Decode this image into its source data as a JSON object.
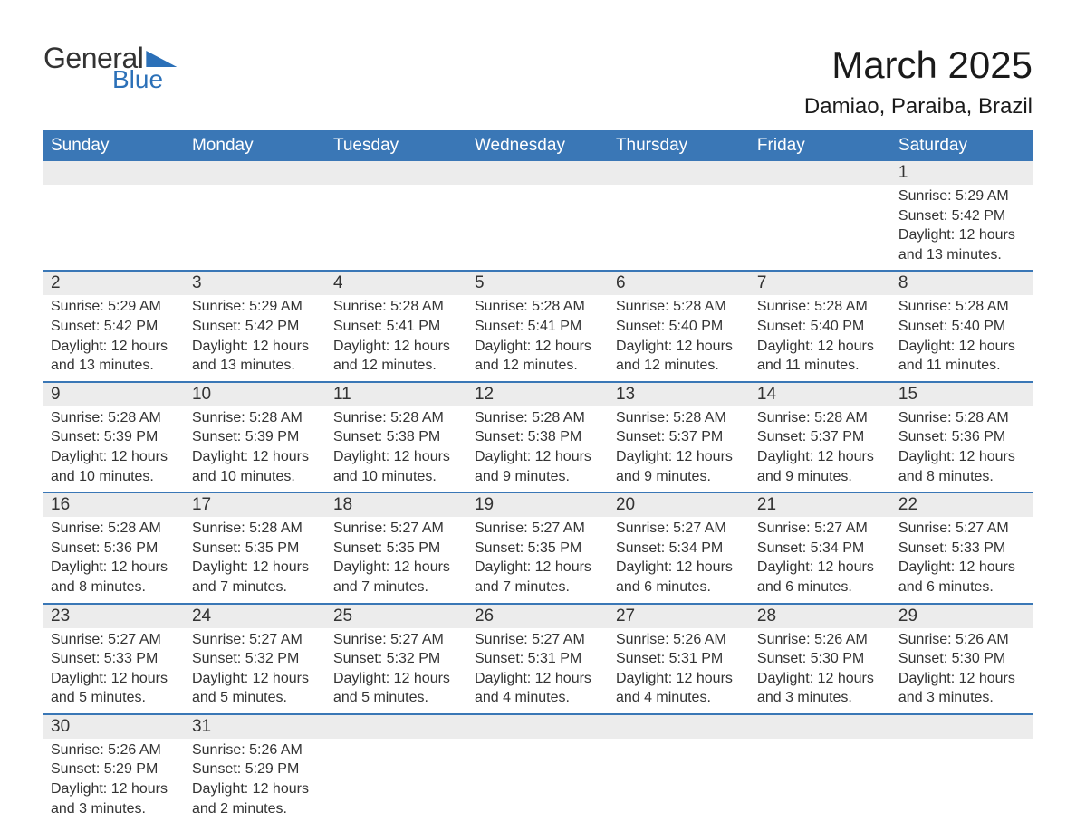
{
  "logo": {
    "line1": "General",
    "line2": "Blue"
  },
  "header": {
    "title": "March 2025",
    "location": "Damiao, Paraiba, Brazil",
    "title_fontsize": 42,
    "subtitle_fontsize": 24,
    "text_color": "#1a1a1a"
  },
  "styling": {
    "header_bg": "#3a77b6",
    "header_text_color": "#ffffff",
    "daynum_bg": "#ececec",
    "row_separator_color": "#3a77b6",
    "body_text_color": "#333333",
    "body_fontsize": 16,
    "daynum_fontsize": 19,
    "dayname_fontsize": 19,
    "page_bg": "#ffffff",
    "logo_accent": "#2b70b8"
  },
  "calendar": {
    "type": "table",
    "columns": [
      "Sunday",
      "Monday",
      "Tuesday",
      "Wednesday",
      "Thursday",
      "Friday",
      "Saturday"
    ],
    "weeks": [
      [
        {
          "day": "",
          "sunrise": "",
          "sunset": "",
          "daylight": ""
        },
        {
          "day": "",
          "sunrise": "",
          "sunset": "",
          "daylight": ""
        },
        {
          "day": "",
          "sunrise": "",
          "sunset": "",
          "daylight": ""
        },
        {
          "day": "",
          "sunrise": "",
          "sunset": "",
          "daylight": ""
        },
        {
          "day": "",
          "sunrise": "",
          "sunset": "",
          "daylight": ""
        },
        {
          "day": "",
          "sunrise": "",
          "sunset": "",
          "daylight": ""
        },
        {
          "day": "1",
          "sunrise": "Sunrise: 5:29 AM",
          "sunset": "Sunset: 5:42 PM",
          "daylight": "Daylight: 12 hours and 13 minutes."
        }
      ],
      [
        {
          "day": "2",
          "sunrise": "Sunrise: 5:29 AM",
          "sunset": "Sunset: 5:42 PM",
          "daylight": "Daylight: 12 hours and 13 minutes."
        },
        {
          "day": "3",
          "sunrise": "Sunrise: 5:29 AM",
          "sunset": "Sunset: 5:42 PM",
          "daylight": "Daylight: 12 hours and 13 minutes."
        },
        {
          "day": "4",
          "sunrise": "Sunrise: 5:28 AM",
          "sunset": "Sunset: 5:41 PM",
          "daylight": "Daylight: 12 hours and 12 minutes."
        },
        {
          "day": "5",
          "sunrise": "Sunrise: 5:28 AM",
          "sunset": "Sunset: 5:41 PM",
          "daylight": "Daylight: 12 hours and 12 minutes."
        },
        {
          "day": "6",
          "sunrise": "Sunrise: 5:28 AM",
          "sunset": "Sunset: 5:40 PM",
          "daylight": "Daylight: 12 hours and 12 minutes."
        },
        {
          "day": "7",
          "sunrise": "Sunrise: 5:28 AM",
          "sunset": "Sunset: 5:40 PM",
          "daylight": "Daylight: 12 hours and 11 minutes."
        },
        {
          "day": "8",
          "sunrise": "Sunrise: 5:28 AM",
          "sunset": "Sunset: 5:40 PM",
          "daylight": "Daylight: 12 hours and 11 minutes."
        }
      ],
      [
        {
          "day": "9",
          "sunrise": "Sunrise: 5:28 AM",
          "sunset": "Sunset: 5:39 PM",
          "daylight": "Daylight: 12 hours and 10 minutes."
        },
        {
          "day": "10",
          "sunrise": "Sunrise: 5:28 AM",
          "sunset": "Sunset: 5:39 PM",
          "daylight": "Daylight: 12 hours and 10 minutes."
        },
        {
          "day": "11",
          "sunrise": "Sunrise: 5:28 AM",
          "sunset": "Sunset: 5:38 PM",
          "daylight": "Daylight: 12 hours and 10 minutes."
        },
        {
          "day": "12",
          "sunrise": "Sunrise: 5:28 AM",
          "sunset": "Sunset: 5:38 PM",
          "daylight": "Daylight: 12 hours and 9 minutes."
        },
        {
          "day": "13",
          "sunrise": "Sunrise: 5:28 AM",
          "sunset": "Sunset: 5:37 PM",
          "daylight": "Daylight: 12 hours and 9 minutes."
        },
        {
          "day": "14",
          "sunrise": "Sunrise: 5:28 AM",
          "sunset": "Sunset: 5:37 PM",
          "daylight": "Daylight: 12 hours and 9 minutes."
        },
        {
          "day": "15",
          "sunrise": "Sunrise: 5:28 AM",
          "sunset": "Sunset: 5:36 PM",
          "daylight": "Daylight: 12 hours and 8 minutes."
        }
      ],
      [
        {
          "day": "16",
          "sunrise": "Sunrise: 5:28 AM",
          "sunset": "Sunset: 5:36 PM",
          "daylight": "Daylight: 12 hours and 8 minutes."
        },
        {
          "day": "17",
          "sunrise": "Sunrise: 5:28 AM",
          "sunset": "Sunset: 5:35 PM",
          "daylight": "Daylight: 12 hours and 7 minutes."
        },
        {
          "day": "18",
          "sunrise": "Sunrise: 5:27 AM",
          "sunset": "Sunset: 5:35 PM",
          "daylight": "Daylight: 12 hours and 7 minutes."
        },
        {
          "day": "19",
          "sunrise": "Sunrise: 5:27 AM",
          "sunset": "Sunset: 5:35 PM",
          "daylight": "Daylight: 12 hours and 7 minutes."
        },
        {
          "day": "20",
          "sunrise": "Sunrise: 5:27 AM",
          "sunset": "Sunset: 5:34 PM",
          "daylight": "Daylight: 12 hours and 6 minutes."
        },
        {
          "day": "21",
          "sunrise": "Sunrise: 5:27 AM",
          "sunset": "Sunset: 5:34 PM",
          "daylight": "Daylight: 12 hours and 6 minutes."
        },
        {
          "day": "22",
          "sunrise": "Sunrise: 5:27 AM",
          "sunset": "Sunset: 5:33 PM",
          "daylight": "Daylight: 12 hours and 6 minutes."
        }
      ],
      [
        {
          "day": "23",
          "sunrise": "Sunrise: 5:27 AM",
          "sunset": "Sunset: 5:33 PM",
          "daylight": "Daylight: 12 hours and 5 minutes."
        },
        {
          "day": "24",
          "sunrise": "Sunrise: 5:27 AM",
          "sunset": "Sunset: 5:32 PM",
          "daylight": "Daylight: 12 hours and 5 minutes."
        },
        {
          "day": "25",
          "sunrise": "Sunrise: 5:27 AM",
          "sunset": "Sunset: 5:32 PM",
          "daylight": "Daylight: 12 hours and 5 minutes."
        },
        {
          "day": "26",
          "sunrise": "Sunrise: 5:27 AM",
          "sunset": "Sunset: 5:31 PM",
          "daylight": "Daylight: 12 hours and 4 minutes."
        },
        {
          "day": "27",
          "sunrise": "Sunrise: 5:26 AM",
          "sunset": "Sunset: 5:31 PM",
          "daylight": "Daylight: 12 hours and 4 minutes."
        },
        {
          "day": "28",
          "sunrise": "Sunrise: 5:26 AM",
          "sunset": "Sunset: 5:30 PM",
          "daylight": "Daylight: 12 hours and 3 minutes."
        },
        {
          "day": "29",
          "sunrise": "Sunrise: 5:26 AM",
          "sunset": "Sunset: 5:30 PM",
          "daylight": "Daylight: 12 hours and 3 minutes."
        }
      ],
      [
        {
          "day": "30",
          "sunrise": "Sunrise: 5:26 AM",
          "sunset": "Sunset: 5:29 PM",
          "daylight": "Daylight: 12 hours and 3 minutes."
        },
        {
          "day": "31",
          "sunrise": "Sunrise: 5:26 AM",
          "sunset": "Sunset: 5:29 PM",
          "daylight": "Daylight: 12 hours and 2 minutes."
        },
        {
          "day": "",
          "sunrise": "",
          "sunset": "",
          "daylight": ""
        },
        {
          "day": "",
          "sunrise": "",
          "sunset": "",
          "daylight": ""
        },
        {
          "day": "",
          "sunrise": "",
          "sunset": "",
          "daylight": ""
        },
        {
          "day": "",
          "sunrise": "",
          "sunset": "",
          "daylight": ""
        },
        {
          "day": "",
          "sunrise": "",
          "sunset": "",
          "daylight": ""
        }
      ]
    ]
  }
}
